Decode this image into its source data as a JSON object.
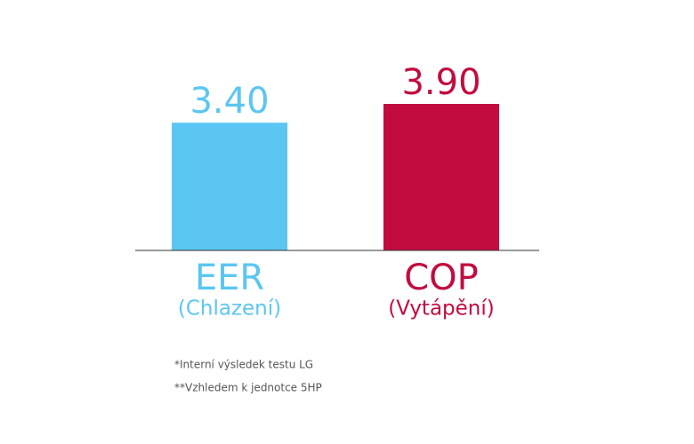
{
  "chart_data": {
    "type": "bar",
    "categories": [
      "EER",
      "COP"
    ],
    "category_sublabels": [
      "(Chlazení)",
      "(Vytápění)"
    ],
    "values": [
      3.4,
      3.9
    ],
    "value_labels": [
      "3.40",
      "3.90"
    ],
    "colors": [
      "#5bc6f1",
      "#c20c40"
    ],
    "footnotes": [
      "*Interní výsledek testu LG",
      "**Vzhledem k jednotce 5HP"
    ]
  }
}
